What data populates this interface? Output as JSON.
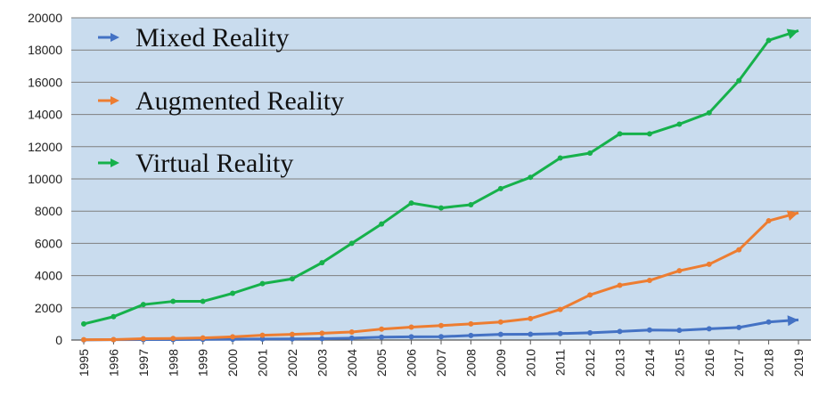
{
  "chart_data": {
    "type": "line",
    "title": "",
    "xlabel": "",
    "ylabel": "",
    "x": [
      "1995",
      "1996",
      "1997",
      "1998",
      "1999",
      "2000",
      "2001",
      "2002",
      "2003",
      "2004",
      "2005",
      "2006",
      "2007",
      "2008",
      "2009",
      "2010",
      "2011",
      "2012",
      "2013",
      "2014",
      "2015",
      "2016",
      "2017",
      "2018",
      "2019"
    ],
    "ylim": [
      0,
      20000
    ],
    "yticks": [
      "0",
      "2000",
      "4000",
      "6000",
      "8000",
      "10000",
      "12000",
      "14000",
      "16000",
      "18000",
      "20000"
    ],
    "grid": true,
    "legend_position": "top-left",
    "background_color": "#c9dcee",
    "series": [
      {
        "name": "Mixed Reality",
        "color": "#4472c4",
        "values": [
          10,
          20,
          30,
          30,
          40,
          50,
          60,
          70,
          80,
          120,
          180,
          200,
          210,
          280,
          350,
          360,
          400,
          450,
          530,
          620,
          600,
          700,
          780,
          1120,
          1250
        ]
      },
      {
        "name": "Augmented Reality",
        "color": "#ed7d31",
        "values": [
          20,
          30,
          80,
          100,
          130,
          200,
          300,
          350,
          420,
          500,
          680,
          800,
          900,
          1000,
          1120,
          1330,
          1900,
          2800,
          3400,
          3700,
          4300,
          4700,
          5600,
          7400,
          7900
        ]
      },
      {
        "name": "Virtual Reality",
        "color": "#16b14b",
        "values": [
          1000,
          1450,
          2200,
          2400,
          2400,
          2900,
          3500,
          3800,
          4800,
          6000,
          7200,
          8500,
          8200,
          8400,
          9400,
          10100,
          11300,
          11600,
          12800,
          12800,
          13400,
          14100,
          16100,
          18600,
          19200
        ]
      }
    ]
  }
}
